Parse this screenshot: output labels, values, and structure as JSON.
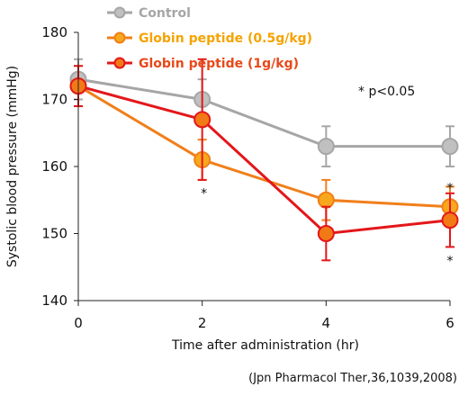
{
  "chart_data": {
    "type": "line",
    "xlabel": "Time after administration (hr)",
    "ylabel": "Systolic blood pressure (mmHg)",
    "x": [
      0,
      2,
      4,
      6
    ],
    "xlim": [
      0,
      6
    ],
    "ylim": [
      140,
      180
    ],
    "xticks": [
      "0",
      "2",
      "4",
      "6"
    ],
    "yticks": [
      "140",
      "150",
      "160",
      "170",
      "180"
    ],
    "grid": false,
    "legend_position": "top-left",
    "series": [
      {
        "name": "Control",
        "values": [
          173,
          170,
          163,
          163
        ],
        "error": [
          3,
          3,
          3,
          3
        ],
        "color": "#a6a6a6",
        "fill": "#c0c0c0",
        "legend_color": "#a6a6a6"
      },
      {
        "name": "Globin peptide (0.5g/kg)",
        "values": [
          172,
          161,
          155,
          154
        ],
        "error": [
          3,
          3,
          3,
          3
        ],
        "color": "#f07f1a",
        "fill": "#f8a81c",
        "legend_color": "#f5a300"
      },
      {
        "name": "Globin peptide (1g/kg)",
        "values": [
          172,
          167,
          150,
          152
        ],
        "error": [
          3,
          9,
          4,
          4
        ],
        "color": "#e3171b",
        "fill": "#f27a16",
        "legend_color": "#e8491a"
      }
    ],
    "annotations": {
      "significance_label": "* p<0.05",
      "marks": [
        "*",
        "*",
        "*"
      ]
    },
    "source": "(Jpn Pharmacol Ther,36,1039,2008)"
  }
}
